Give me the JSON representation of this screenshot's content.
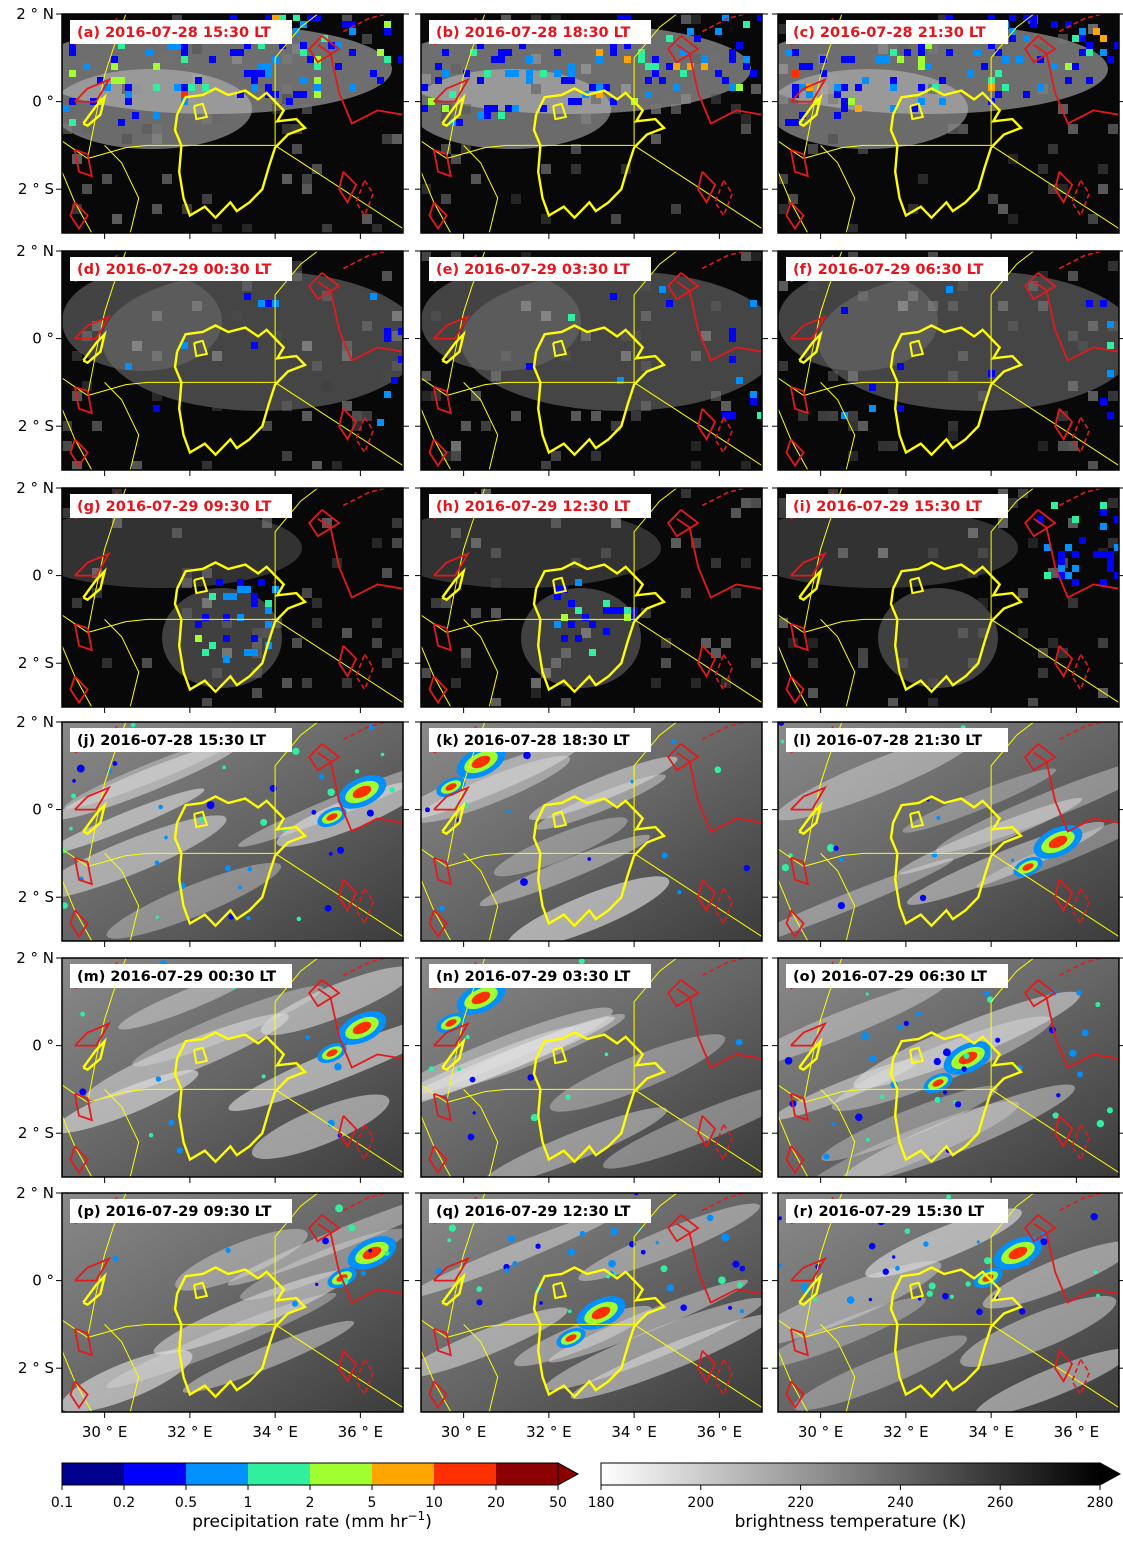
{
  "panels": [
    {
      "letter": "(a)",
      "label": "2016-07-28 15:30 LT",
      "group": "obs"
    },
    {
      "letter": "(b)",
      "label": "2016-07-28 18:30 LT",
      "group": "obs"
    },
    {
      "letter": "(c)",
      "label": "2016-07-28 21:30 LT",
      "group": "obs"
    },
    {
      "letter": "(d)",
      "label": "2016-07-29 00:30 LT",
      "group": "obs"
    },
    {
      "letter": "(e)",
      "label": "2016-07-29 03:30 LT",
      "group": "obs"
    },
    {
      "letter": "(f)",
      "label": "2016-07-29 06:30 LT",
      "group": "obs"
    },
    {
      "letter": "(g)",
      "label": "2016-07-29 09:30 LT",
      "group": "obs"
    },
    {
      "letter": "(h)",
      "label": "2016-07-29 12:30 LT",
      "group": "obs"
    },
    {
      "letter": "(i)",
      "label": "2016-07-29 15:30 LT",
      "group": "obs"
    },
    {
      "letter": "(j)",
      "label": "2016-07-28 15:30 LT",
      "group": "model"
    },
    {
      "letter": "(k)",
      "label": "2016-07-28 18:30 LT",
      "group": "model"
    },
    {
      "letter": "(l)",
      "label": "2016-07-28 21:30 LT",
      "group": "model"
    },
    {
      "letter": "(m)",
      "label": "2016-07-29 00:30 LT",
      "group": "model"
    },
    {
      "letter": "(n)",
      "label": "2016-07-29 03:30 LT",
      "group": "model"
    },
    {
      "letter": "(o)",
      "label": "2016-07-29 06:30 LT",
      "group": "model"
    },
    {
      "letter": "(p)",
      "label": "2016-07-29 09:30 LT",
      "group": "model"
    },
    {
      "letter": "(q)",
      "label": "2016-07-29 12:30 LT",
      "group": "model"
    },
    {
      "letter": "(r)",
      "label": "2016-07-29 15:30 LT",
      "group": "model"
    }
  ],
  "axes": {
    "lat_ticks": [
      "2 ° N",
      "0 °",
      "2 ° S"
    ],
    "lon_ticks": [
      "30 ° E",
      "32 ° E",
      "34 ° E",
      "36 ° E"
    ]
  },
  "colors": {
    "obs_title": "#e8141c",
    "model_title": "#000000",
    "lake_outline": "#ffff00",
    "contour": "#e31a1c"
  },
  "precip_colorbar": {
    "label_text": "precipitation rate (mm hr",
    "label_exp": "−1",
    "label_close": ")",
    "ticks": [
      "0.1",
      "0.2",
      "0.5",
      "1",
      "2",
      "5",
      "10",
      "20",
      "50"
    ],
    "colors": [
      "#00008f",
      "#0000ff",
      "#0090ff",
      "#30f0a0",
      "#a0ff30",
      "#ffa500",
      "#ff3000",
      "#8b0000"
    ]
  },
  "bt_colorbar": {
    "label": "brightness temperature (K)",
    "ticks": [
      "180",
      "200",
      "220",
      "240",
      "260",
      "280"
    ]
  }
}
